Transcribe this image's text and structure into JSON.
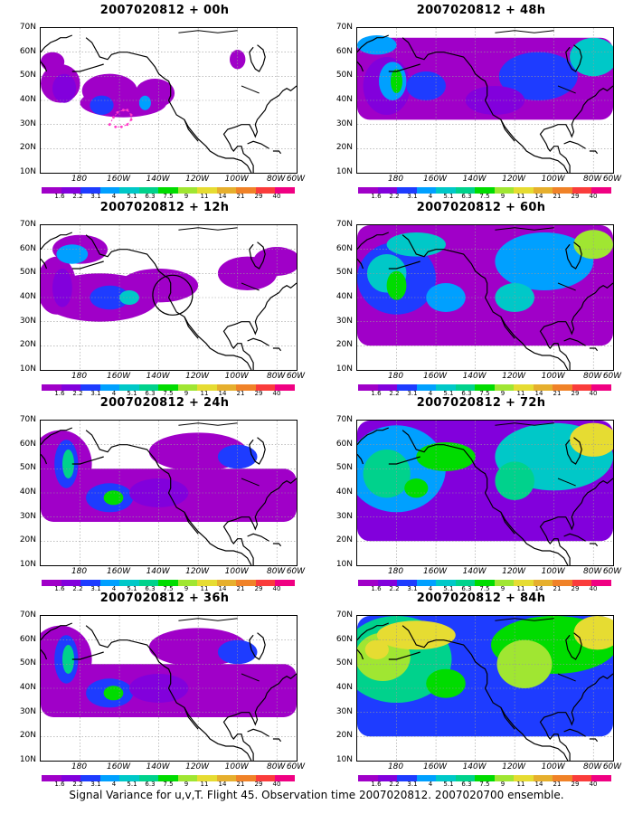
{
  "panels": [
    {
      "title": "2007020812 + 00h",
      "level": 0
    },
    {
      "title": "2007020812 + 48h",
      "level": 3
    },
    {
      "title": "2007020812 + 12h",
      "level": 1
    },
    {
      "title": "2007020812 + 60h",
      "level": 4
    },
    {
      "title": "2007020812 + 24h",
      "level": 2
    },
    {
      "title": "2007020812 + 72h",
      "level": 5
    },
    {
      "title": "2007020812 + 36h",
      "level": 2
    },
    {
      "title": "2007020812 + 84h",
      "level": 6
    }
  ],
  "y_ticks": [
    "70N",
    "60N",
    "50N",
    "40N",
    "30N",
    "20N",
    "10N"
  ],
  "x_ticks": [
    "180",
    "160W",
    "140W",
    "120W",
    "100W",
    "80W",
    "60W"
  ],
  "colorbar_labels": [
    "1.6",
    "2.2",
    "3.1",
    "4",
    "5.1",
    "6.3",
    "7.5",
    "9",
    "11",
    "14",
    "21",
    "29",
    "40"
  ],
  "colorbar_colors": [
    "#a000c8",
    "#8200dc",
    "#1e3cff",
    "#00a0ff",
    "#00c8c8",
    "#00d28c",
    "#00dc00",
    "#a0e632",
    "#e6dc32",
    "#e6af2d",
    "#f08228",
    "#fa3c3c",
    "#f00082"
  ],
  "caption": "Signal Variance for u,v,T. Flight 45. Observation time 2007020812. 2007020700 ensemble."
}
